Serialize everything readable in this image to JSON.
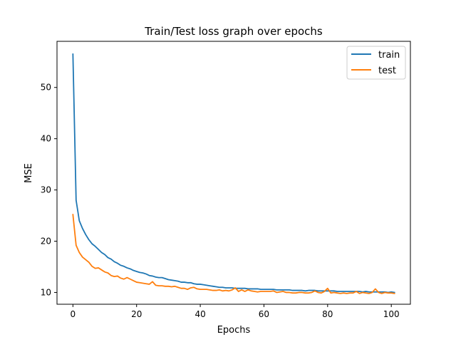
{
  "chart_data": {
    "type": "line",
    "title": "Train/Test loss graph over epochs",
    "xlabel": "Epochs",
    "ylabel": "MSE",
    "xlim": [
      -5,
      106
    ],
    "ylim": [
      7.7,
      59.0
    ],
    "xticks": [
      0,
      20,
      40,
      60,
      80,
      100
    ],
    "yticks": [
      10,
      20,
      30,
      40,
      50
    ],
    "grid": false,
    "legend_position": "top-right",
    "colors": {
      "train": "#1f77b4",
      "test": "#ff7f0e"
    },
    "series": [
      {
        "name": "train",
        "x": [
          0,
          1,
          2,
          3,
          4,
          5,
          6,
          7,
          8,
          9,
          10,
          11,
          12,
          13,
          14,
          15,
          16,
          17,
          18,
          19,
          20,
          21,
          22,
          23,
          24,
          25,
          26,
          27,
          28,
          29,
          30,
          31,
          32,
          33,
          34,
          35,
          36,
          37,
          38,
          39,
          40,
          41,
          42,
          43,
          44,
          45,
          46,
          47,
          48,
          49,
          50,
          51,
          52,
          53,
          54,
          55,
          56,
          57,
          58,
          59,
          60,
          61,
          62,
          63,
          64,
          65,
          66,
          67,
          68,
          69,
          70,
          71,
          72,
          73,
          74,
          75,
          76,
          77,
          78,
          79,
          80,
          81,
          82,
          83,
          84,
          85,
          86,
          87,
          88,
          89,
          90,
          91,
          92,
          93,
          94,
          95,
          96,
          97,
          98,
          99,
          100,
          101
        ],
        "values": [
          56.5,
          28.0,
          24.0,
          22.5,
          21.3,
          20.3,
          19.5,
          19.0,
          18.4,
          17.8,
          17.4,
          16.8,
          16.5,
          16.0,
          15.7,
          15.3,
          15.1,
          14.8,
          14.6,
          14.3,
          14.1,
          13.9,
          13.8,
          13.6,
          13.3,
          13.2,
          13.0,
          12.9,
          12.9,
          12.7,
          12.5,
          12.4,
          12.3,
          12.2,
          12.0,
          12.0,
          11.9,
          11.9,
          11.7,
          11.6,
          11.6,
          11.5,
          11.4,
          11.3,
          11.2,
          11.1,
          11.0,
          11.0,
          10.9,
          10.9,
          10.9,
          10.8,
          10.8,
          10.8,
          10.8,
          10.7,
          10.7,
          10.7,
          10.7,
          10.6,
          10.6,
          10.6,
          10.6,
          10.6,
          10.5,
          10.5,
          10.5,
          10.5,
          10.5,
          10.4,
          10.4,
          10.4,
          10.4,
          10.3,
          10.4,
          10.4,
          10.4,
          10.3,
          10.3,
          10.3,
          10.3,
          10.3,
          10.3,
          10.2,
          10.2,
          10.2,
          10.2,
          10.2,
          10.2,
          10.2,
          10.2,
          10.1,
          10.2,
          10.1,
          10.1,
          10.1,
          10.1,
          10.1,
          10.1,
          10.0,
          10.1,
          10.0
        ]
      },
      {
        "name": "test",
        "x": [
          0,
          1,
          2,
          3,
          4,
          5,
          6,
          7,
          8,
          9,
          10,
          11,
          12,
          13,
          14,
          15,
          16,
          17,
          18,
          19,
          20,
          21,
          22,
          23,
          24,
          25,
          26,
          27,
          28,
          29,
          30,
          31,
          32,
          33,
          34,
          35,
          36,
          37,
          38,
          39,
          40,
          41,
          42,
          43,
          44,
          45,
          46,
          47,
          48,
          49,
          50,
          51,
          52,
          53,
          54,
          55,
          56,
          57,
          58,
          59,
          60,
          61,
          62,
          63,
          64,
          65,
          66,
          67,
          68,
          69,
          70,
          71,
          72,
          73,
          74,
          75,
          76,
          77,
          78,
          79,
          80,
          81,
          82,
          83,
          84,
          85,
          86,
          87,
          88,
          89,
          90,
          91,
          92,
          93,
          94,
          95,
          96,
          97,
          98,
          99,
          100,
          101
        ],
        "values": [
          25.2,
          19.2,
          17.8,
          16.9,
          16.4,
          15.9,
          15.1,
          14.7,
          14.8,
          14.4,
          14.0,
          13.8,
          13.3,
          13.1,
          13.2,
          12.8,
          12.6,
          12.9,
          12.6,
          12.3,
          12.0,
          11.9,
          11.8,
          11.7,
          11.6,
          12.1,
          11.4,
          11.3,
          11.3,
          11.2,
          11.2,
          11.1,
          11.2,
          11.0,
          10.8,
          10.8,
          10.6,
          10.9,
          11.0,
          10.7,
          10.6,
          10.6,
          10.6,
          10.5,
          10.4,
          10.4,
          10.5,
          10.3,
          10.4,
          10.3,
          10.5,
          10.9,
          10.2,
          10.5,
          10.2,
          10.5,
          10.3,
          10.2,
          10.1,
          10.2,
          10.2,
          10.2,
          10.2,
          10.3,
          10.0,
          10.1,
          10.2,
          10.0,
          10.0,
          9.9,
          9.9,
          10.0,
          10.0,
          9.9,
          9.9,
          10.0,
          10.3,
          10.0,
          9.9,
          10.2,
          10.8,
          9.9,
          10.0,
          9.9,
          9.8,
          9.9,
          9.8,
          9.9,
          9.9,
          10.2,
          9.8,
          10.0,
          9.9,
          9.8,
          10.0,
          10.7,
          10.0,
          9.8,
          10.0,
          9.9,
          9.9,
          9.8
        ]
      }
    ]
  }
}
